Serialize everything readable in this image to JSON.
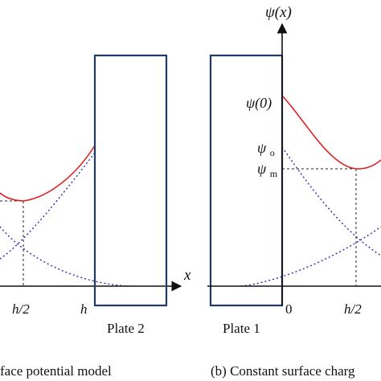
{
  "left_panel": {
    "x_axis_label": "x",
    "tick_h_half": "h/2",
    "tick_h": "h",
    "plate_label": "Plate 2",
    "caption": "face potential model"
  },
  "right_panel": {
    "y_axis_label": "ψ(x)",
    "label_psi0": "ψ(0)",
    "label_psio": "ψ",
    "label_psio_sub": "o",
    "label_psim": "ψ",
    "label_psim_sub": "m",
    "tick_0": "0",
    "tick_h_half": "h/2",
    "plate_label": "Plate 1",
    "caption": "(b) Constant surface charg"
  },
  "colors": {
    "potential_curve": "#dd2222",
    "decay_curves": "#2d2db4",
    "plate_border": "#1f3a66",
    "axis": "#111111",
    "guide": "#222222"
  }
}
